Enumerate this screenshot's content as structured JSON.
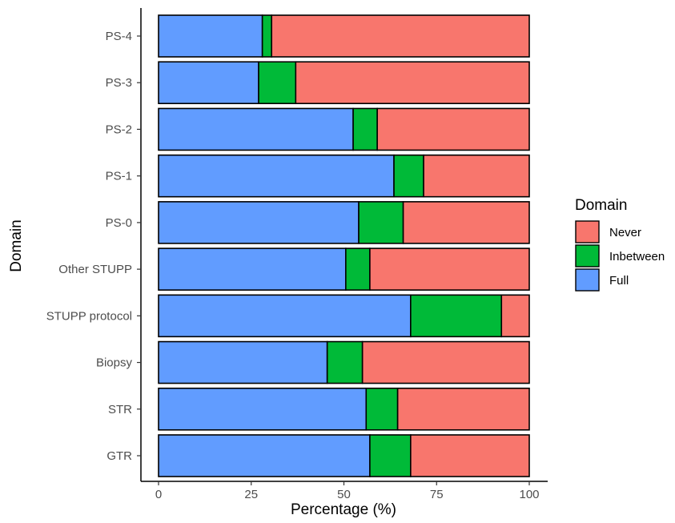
{
  "chart_data": {
    "type": "bar",
    "orientation": "horizontal",
    "stacked": true,
    "categories": [
      "GTR",
      "STR",
      "Biopsy",
      "STUPP protocol",
      "Other STUPP",
      "PS-0",
      "PS-1",
      "PS-2",
      "PS-3",
      "PS-4"
    ],
    "series": [
      {
        "name": "Full",
        "color": "#619CFF",
        "values": [
          57,
          56,
          45.5,
          68,
          50.5,
          54,
          63.5,
          52.5,
          27,
          28
        ]
      },
      {
        "name": "Inbetween",
        "color": "#00BA38",
        "values": [
          11,
          8.5,
          9.5,
          24.5,
          6.5,
          12,
          8,
          6.5,
          10,
          2.5
        ]
      },
      {
        "name": "Never",
        "color": "#F8766D",
        "values": [
          32,
          35.5,
          45,
          7.5,
          43,
          34,
          28.5,
          41,
          63,
          69.5
        ]
      }
    ],
    "xlabel": "Percentage (%)",
    "ylabel": "Domain",
    "xlim": [
      0,
      100
    ],
    "xticks": [
      0,
      25,
      50,
      75,
      100
    ],
    "grid": false,
    "legend": {
      "title": "Domain",
      "position": "right",
      "entries": [
        {
          "label": "Never",
          "color": "#F8766D"
        },
        {
          "label": "Inbetween",
          "color": "#00BA38"
        },
        {
          "label": "Full",
          "color": "#619CFF"
        }
      ]
    }
  }
}
